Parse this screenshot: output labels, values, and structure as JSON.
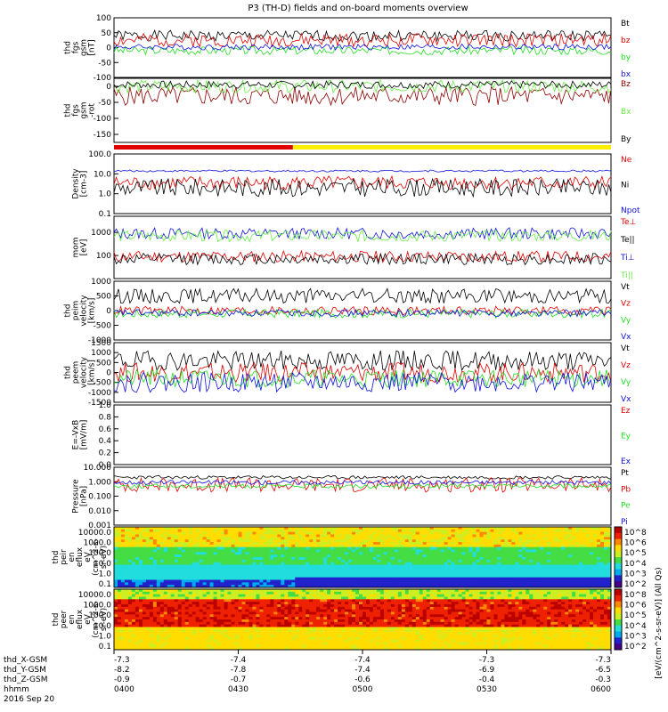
{
  "title": "P3 (TH-D) fields and on-board moments overview",
  "colors": {
    "black": "#000000",
    "red": "#e00000",
    "green": "#22dd22",
    "blue": "#1010dd",
    "darkred": "#8b0000",
    "yellow": "#ffee00",
    "lightgreen": "#66ee44"
  },
  "chart_data": [
    {
      "id": "fgs",
      "type": "line",
      "ylabel": [
        "thd",
        "fgs",
        "gsm",
        "[nT]"
      ],
      "ylim": [
        -100,
        100
      ],
      "ticks": [
        "100",
        "50",
        "0",
        "-50",
        "-100"
      ],
      "tick_values": [
        100,
        50,
        0,
        -50,
        -100
      ],
      "series": [
        {
          "name": "Bt",
          "color": "#000000",
          "base": 40,
          "amp": 18,
          "seed": 1
        },
        {
          "name": "bz",
          "color": "#e00000",
          "base": 25,
          "amp": 22,
          "seed": 2
        },
        {
          "name": "by",
          "color": "#22dd22",
          "base": -10,
          "amp": 14,
          "seed": 3
        },
        {
          "name": "bx",
          "color": "#1010dd",
          "base": 2,
          "amp": 10,
          "seed": 4
        }
      ]
    },
    {
      "id": "fgs_rot",
      "type": "line",
      "ylabel": [
        "thd",
        "fgs",
        "gsm",
        "-rot"
      ],
      "ylim": [
        -175,
        25
      ],
      "ticks": [
        "0",
        "-50",
        "-100",
        "-150"
      ],
      "tick_values": [
        0,
        -50,
        -100,
        -150
      ],
      "series": [
        {
          "name": "Bz",
          "color": "#8b0000",
          "base": -30,
          "amp": 30,
          "seed": 5
        },
        {
          "name": "Bx",
          "color": "#66ee44",
          "base": 0,
          "amp": 20,
          "seed": 6
        },
        {
          "name": "By",
          "color": "#000000",
          "base": 5,
          "amp": 12,
          "seed": 7
        }
      ]
    },
    {
      "id": "density",
      "type": "line",
      "scale": "log",
      "ylabel": [
        "Density",
        "[cm-3]"
      ],
      "ylim": [
        0.1,
        100
      ],
      "ticks": [
        "100.0",
        "10.0",
        "1.0",
        "0.1"
      ],
      "tick_values": [
        100,
        10,
        1,
        0.1
      ],
      "series": [
        {
          "name": "Ne",
          "color": "#e00000",
          "base": 3.5,
          "amp": 0.35,
          "seed": 8
        },
        {
          "name": "Ni",
          "color": "#000000",
          "base": 2.0,
          "amp": 0.45,
          "seed": 9
        },
        {
          "name": "Npot",
          "color": "#1010dd",
          "base": 14,
          "amp": 0.05,
          "seed": 10
        }
      ]
    },
    {
      "id": "temp",
      "type": "line",
      "scale": "log",
      "ylabel": [
        "mom",
        "[eV]"
      ],
      "ylim": [
        10,
        5000
      ],
      "ticks": [
        "1000",
        "100"
      ],
      "tick_values": [
        1000,
        100
      ],
      "series": [
        {
          "name": "Te⊥",
          "color": "#e00000",
          "base": 90,
          "amp": 0.25,
          "seed": 11
        },
        {
          "name": "Te||",
          "color": "#000000",
          "base": 70,
          "amp": 0.25,
          "seed": 12
        },
        {
          "name": "Ti⊥",
          "color": "#1010dd",
          "base": 900,
          "amp": 0.25,
          "seed": 13
        },
        {
          "name": "Ti||",
          "color": "#66ee44",
          "base": 700,
          "amp": 0.25,
          "seed": 14
        }
      ]
    },
    {
      "id": "peim",
      "type": "line",
      "ylabel": [
        "thd",
        "peim",
        "velocity",
        "[km/s]"
      ],
      "ylim": [
        -1000,
        1000
      ],
      "ticks": [
        "1000",
        "500",
        "0",
        "-500",
        "-1000"
      ],
      "tick_values": [
        1000,
        500,
        0,
        -500,
        -1000
      ],
      "series": [
        {
          "name": "Vt",
          "color": "#000000",
          "base": 500,
          "amp": 250,
          "seed": 15
        },
        {
          "name": "Vz",
          "color": "#e00000",
          "base": 0,
          "amp": 150,
          "seed": 16
        },
        {
          "name": "Vy",
          "color": "#22dd22",
          "base": -100,
          "amp": 150,
          "seed": 17
        },
        {
          "name": "Vx",
          "color": "#1010dd",
          "base": -80,
          "amp": 120,
          "seed": 18
        }
      ]
    },
    {
      "id": "peem",
      "type": "line",
      "ylabel": [
        "thd",
        "peem",
        "velocity",
        "[km/s]"
      ],
      "ylim": [
        -1500,
        1500
      ],
      "ticks": [
        "1500",
        "1000",
        "500",
        "0",
        "-500",
        "-1000",
        "-1500"
      ],
      "tick_values": [
        1500,
        1000,
        500,
        0,
        -500,
        -1000,
        -1500
      ],
      "series": [
        {
          "name": "Vt",
          "color": "#000000",
          "base": 600,
          "amp": 500,
          "seed": 19
        },
        {
          "name": "Vz",
          "color": "#e00000",
          "base": 0,
          "amp": 500,
          "seed": 20
        },
        {
          "name": "Vy",
          "color": "#22dd22",
          "base": -300,
          "amp": 450,
          "seed": 21
        },
        {
          "name": "Vx",
          "color": "#1010dd",
          "base": -500,
          "amp": 500,
          "seed": 22
        }
      ]
    },
    {
      "id": "efield",
      "type": "line",
      "ylabel": [
        "E=-VxB",
        "[mV/m]"
      ],
      "ylim": [
        0,
        1
      ],
      "ticks": [
        "1.0",
        "0.8",
        "0.6",
        "0.4",
        "0.2",
        "0.0"
      ],
      "tick_values": [
        1.0,
        0.8,
        0.6,
        0.4,
        0.2,
        0.0
      ],
      "series": [
        {
          "name": "Ez",
          "color": "#e00000"
        },
        {
          "name": "Ey",
          "color": "#22dd22"
        },
        {
          "name": "Ex",
          "color": "#1010dd"
        }
      ]
    },
    {
      "id": "pressure",
      "type": "line",
      "scale": "log",
      "ylabel": [
        "Pressure",
        "[nPa]"
      ],
      "ylim": [
        0.001,
        10
      ],
      "ticks": [
        "10.000",
        "1.000",
        "0.100",
        "0.010",
        "0.001"
      ],
      "tick_values": [
        10,
        1,
        0.1,
        0.01,
        0.001
      ],
      "series": [
        {
          "name": "Pt",
          "color": "#000000",
          "base": 2.0,
          "amp": 0.12,
          "seed": 23
        },
        {
          "name": "Pb",
          "color": "#e00000",
          "base": 0.6,
          "amp": 0.5,
          "seed": 24
        },
        {
          "name": "Pe",
          "color": "#22dd22",
          "base": 0.5,
          "amp": 0.15,
          "seed": 25
        },
        {
          "name": "Pi",
          "color": "#1010dd",
          "base": 0.9,
          "amp": 0.15,
          "seed": 26
        }
      ]
    },
    {
      "id": "peir_spec",
      "type": "heatmap",
      "ylabel": [
        "thd",
        "peir",
        "en",
        "eflux",
        "eV",
        "(cm^2-s-",
        "sr-eV)"
      ],
      "ticks": [
        "10000.0",
        "1000.0",
        "100.0",
        "10.0",
        "1.0",
        "0.1"
      ],
      "species": "ion"
    },
    {
      "id": "peer_spec",
      "type": "heatmap",
      "ylabel": [
        "thd",
        "peer",
        "en",
        "eflux",
        "eV",
        "(cm^2-s-",
        "sr-eV)"
      ],
      "ticks": [
        "10000.0",
        "1000.0",
        "100.0",
        "10.0",
        "1.0",
        "0.1"
      ],
      "species": "electron"
    }
  ],
  "colorbar": {
    "label": "[eV/(cm^2-s-sr-eV)] (All Qs)",
    "ticks": [
      "10^8",
      "10^6",
      "10^5",
      "10^4",
      "10^3",
      "10^2"
    ]
  },
  "mode_bar": {
    "segments": [
      {
        "color": "#e00000",
        "fraction": 0.36
      },
      {
        "color": "#ffee00",
        "fraction": 0.64
      }
    ]
  },
  "footer": {
    "labels": [
      "thd_X-GSM",
      "thd_Y-GSM",
      "thd_Z-GSM",
      "hhmm",
      "2016 Sep 20"
    ],
    "columns": [
      [
        "-7.3",
        "-8.2",
        "-0.9",
        "0400"
      ],
      [
        "-7.4",
        "-7.8",
        "-0.7",
        "0430"
      ],
      [
        "-7.4",
        "-7.4",
        "-0.6",
        "0500"
      ],
      [
        "-7.3",
        "-6.9",
        "-0.4",
        "0530"
      ],
      [
        "-7.3",
        "-6.5",
        "-0.3",
        "0600"
      ]
    ]
  }
}
